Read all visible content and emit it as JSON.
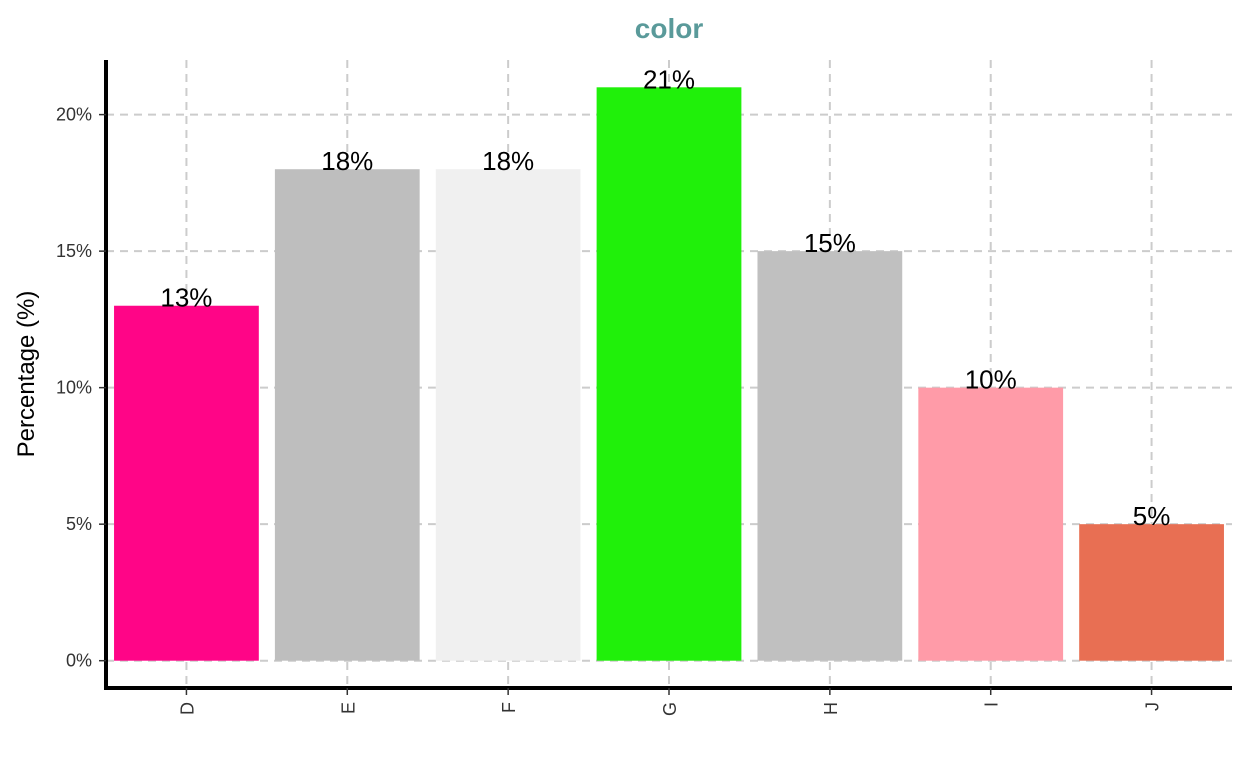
{
  "chart_data": {
    "type": "bar",
    "title": "color",
    "xlabel": "",
    "ylabel": "Percentage (%)",
    "categories": [
      "D",
      "E",
      "F",
      "G",
      "H",
      "I",
      "J"
    ],
    "values": [
      13,
      18,
      18,
      21,
      15,
      10,
      5
    ],
    "data_labels": [
      "13%",
      "18%",
      "18%",
      "21%",
      "15%",
      "10%",
      "5%"
    ],
    "bar_colors": [
      "#FF0587",
      "#BEBEBE",
      "#F0F0F0",
      "#20F00A",
      "#C0C0C0",
      "#FF9BA8",
      "#E86F53"
    ],
    "title_color": "#5A9A9A",
    "ylim": [
      -1,
      22
    ],
    "y_ticks": [
      0,
      5,
      10,
      15,
      20
    ],
    "y_tick_labels": [
      "0%",
      "5%",
      "10%",
      "15%",
      "20%"
    ],
    "grid": true,
    "legend": "none"
  }
}
